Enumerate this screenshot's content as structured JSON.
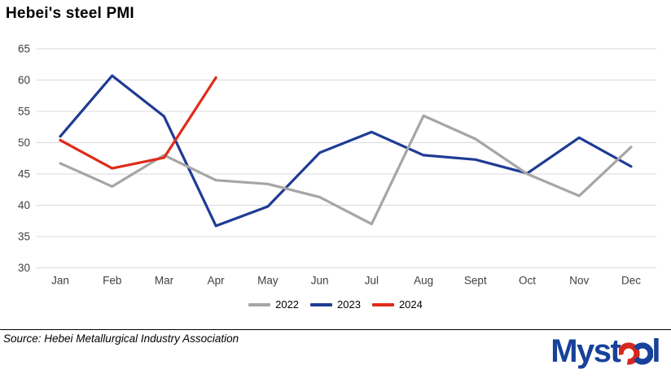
{
  "title": "Hebei's steel PMI",
  "source": "Source: Hebei Metallurgical Industry Association",
  "logo": {
    "prefix": "Myst",
    "suffix": "l",
    "navy": "#17419a",
    "red": "#d6281e"
  },
  "colors": {
    "gridline": "#d9d9d9",
    "axis_text": "#404040",
    "background": "#ffffff"
  },
  "chart_data": {
    "type": "line",
    "title": "Hebei's steel PMI",
    "categories": [
      "Jan",
      "Feb",
      "Mar",
      "Apr",
      "May",
      "Jun",
      "Jul",
      "Aug",
      "Sept",
      "Oct",
      "Nov",
      "Dec"
    ],
    "series": [
      {
        "name": "2022",
        "color": "#a6a6a6",
        "values": [
          46.7,
          43.0,
          48.0,
          44.0,
          43.4,
          41.3,
          37.0,
          54.3,
          50.6,
          45.0,
          41.5,
          49.3
        ]
      },
      {
        "name": "2023",
        "color": "#1f3b94",
        "values": [
          51.0,
          60.7,
          54.2,
          36.7,
          39.8,
          48.4,
          51.7,
          48.0,
          47.3,
          45.1,
          50.8,
          46.2
        ]
      },
      {
        "name": "2024",
        "color": "#e02b1a",
        "values": [
          50.4,
          45.9,
          47.6,
          60.4,
          null,
          null,
          null,
          null,
          null,
          null,
          null,
          null
        ]
      }
    ],
    "xlabel": "",
    "ylabel": "",
    "ylim": [
      30,
      65
    ],
    "ytick_step": 5,
    "grid": true,
    "legend_position": "bottom",
    "draw_order": [
      "2023",
      "2022",
      "2024"
    ]
  }
}
